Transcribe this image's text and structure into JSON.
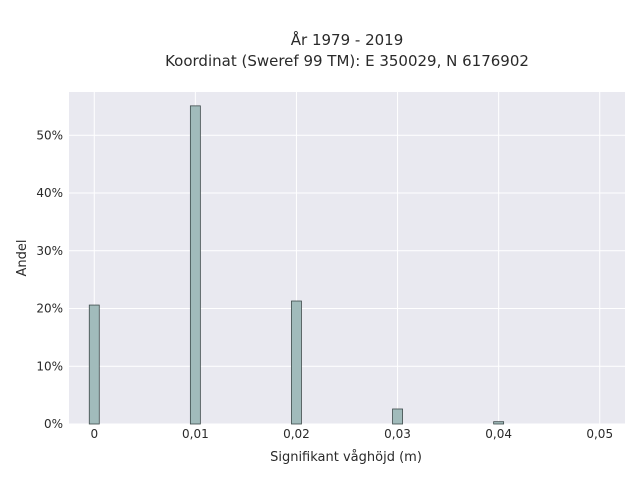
{
  "chart_data": {
    "type": "bar",
    "title_line1": "År 1979 - 2019",
    "title_line2": "Koordinat (Sweref 99 TM): E 350029, N 6176902",
    "xlabel": "Signifikant våghöjd (m)",
    "ylabel": "Andel",
    "x": [
      0,
      0.01,
      0.02,
      0.03,
      0.04
    ],
    "values": [
      0.206,
      0.551,
      0.213,
      0.026,
      0.004
    ],
    "xlim": [
      -0.0025,
      0.0525
    ],
    "ylim": [
      0,
      0.575
    ],
    "x_ticks": [
      0,
      0.01,
      0.02,
      0.03,
      0.04,
      0.05
    ],
    "x_tick_labels": [
      "0",
      "0,01",
      "0,02",
      "0,03",
      "0,04",
      "0,05"
    ],
    "y_ticks": [
      0,
      0.1,
      0.2,
      0.3,
      0.4,
      0.5
    ],
    "y_tick_labels": [
      "0%",
      "10%",
      "20%",
      "30%",
      "40%",
      "50%"
    ],
    "grid": true,
    "legend": "none",
    "colors": {
      "plot_background": "#e9e9f0",
      "grid": "#ffffff",
      "bar_fill": "#a1bbbb",
      "bar_stroke": "#3d4a4a"
    }
  }
}
